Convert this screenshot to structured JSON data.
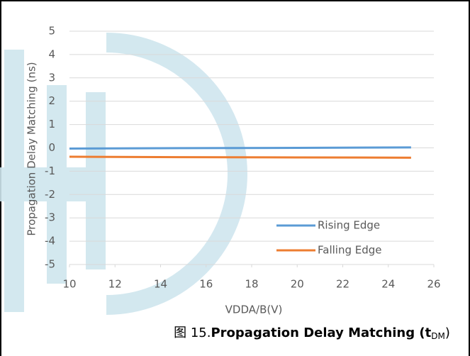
{
  "chart_data": {
    "type": "line",
    "x_label": "VDDA/B(V)",
    "y_label": "Propagation Delay Matching (ns)",
    "x": [
      10,
      15,
      20,
      25
    ],
    "series": [
      {
        "name": "Rising Edge",
        "color": "#5b9bd5",
        "values": [
          -0.03,
          -0.01,
          0.0,
          0.02
        ]
      },
      {
        "name": "Falling Edge",
        "color": "#ed7d31",
        "values": [
          -0.38,
          -0.4,
          -0.41,
          -0.42
        ]
      }
    ],
    "xlim": [
      10,
      26
    ],
    "xticks": [
      10,
      12,
      14,
      16,
      18,
      20,
      22,
      24,
      26
    ],
    "ylim": [
      -5,
      5
    ],
    "yticks": [
      -5,
      -4,
      -3,
      -2,
      -1,
      0,
      1,
      2,
      3,
      4,
      5
    ],
    "grid": true,
    "legend": "lower right",
    "caption": {
      "prefix": "图 15.",
      "text": "Propagation Delay Matching (t",
      "subscript": "DM",
      "suffix": ")"
    }
  }
}
